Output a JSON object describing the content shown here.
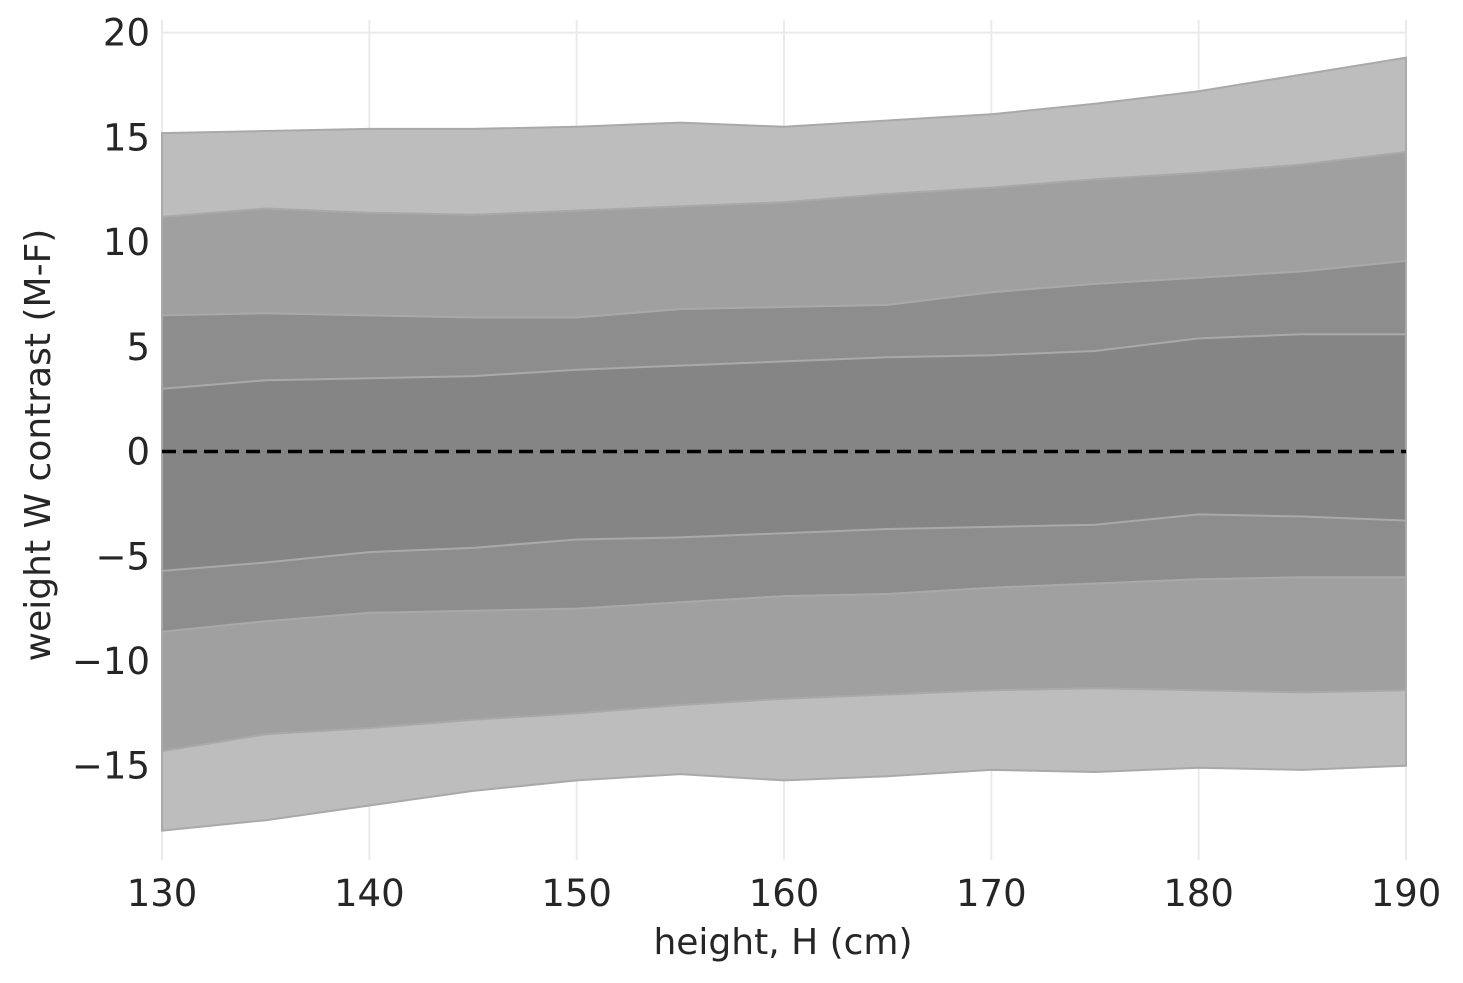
{
  "chart_data": {
    "type": "area",
    "xlabel": "height, H (cm)",
    "ylabel": "weight W contrast (M-F)",
    "xlim": [
      130,
      190
    ],
    "ylim": [
      -19.5,
      20.6
    ],
    "xticks": [
      130,
      140,
      150,
      160,
      170,
      180,
      190
    ],
    "yticks": [
      -15,
      -10,
      -5,
      0,
      5,
      10,
      15,
      20
    ],
    "xtick_labels": [
      "130",
      "140",
      "150",
      "160",
      "170",
      "180",
      "190"
    ],
    "ytick_labels": [
      "−15",
      "−10",
      "−5",
      "0",
      "5",
      "10",
      "15",
      "20"
    ],
    "grid": true,
    "x": [
      130,
      135,
      140,
      145,
      150,
      155,
      160,
      165,
      170,
      175,
      180,
      185,
      190
    ],
    "bands": [
      {
        "lower": [
          -18.1,
          -17.6,
          -16.9,
          -16.2,
          -15.7,
          -15.4,
          -15.7,
          -15.5,
          -15.2,
          -15.3,
          -15.1,
          -15.2,
          -15.0
        ],
        "upper": [
          15.2,
          15.3,
          15.4,
          15.4,
          15.5,
          15.7,
          15.5,
          15.8,
          16.1,
          16.6,
          17.2,
          18.0,
          18.8
        ],
        "color": "#bdbdbd"
      },
      {
        "lower": [
          -14.3,
          -13.5,
          -13.2,
          -12.8,
          -12.5,
          -12.1,
          -11.8,
          -11.6,
          -11.4,
          -11.3,
          -11.4,
          -11.5,
          -11.4
        ],
        "upper": [
          11.2,
          11.6,
          11.4,
          11.3,
          11.5,
          11.7,
          11.9,
          12.3,
          12.6,
          13.0,
          13.3,
          13.7,
          14.3
        ],
        "color": "#a0a0a0"
      },
      {
        "lower": [
          -8.6,
          -8.1,
          -7.7,
          -7.6,
          -7.5,
          -7.2,
          -6.9,
          -6.8,
          -6.5,
          -6.3,
          -6.1,
          -6.0,
          -6.0
        ],
        "upper": [
          6.5,
          6.6,
          6.5,
          6.4,
          6.4,
          6.8,
          6.9,
          7.0,
          7.6,
          8.0,
          8.3,
          8.6,
          9.1
        ],
        "color": "#8d8d8d"
      },
      {
        "lower": [
          -5.7,
          -5.3,
          -4.8,
          -4.6,
          -4.2,
          -4.1,
          -3.9,
          -3.7,
          -3.6,
          -3.5,
          -3.0,
          -3.1,
          -3.3
        ],
        "upper": [
          3.0,
          3.4,
          3.5,
          3.6,
          3.9,
          4.1,
          4.3,
          4.5,
          4.6,
          4.8,
          5.4,
          5.6,
          5.6
        ],
        "color": "#858585"
      }
    ],
    "reference_line": {
      "y": 0,
      "style": "dashed",
      "color": "#000000"
    },
    "band_edge_color": "#a9a9a9"
  }
}
